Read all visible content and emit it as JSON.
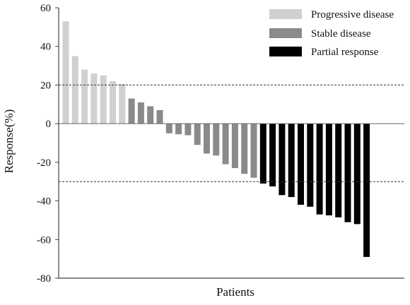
{
  "chart_data": {
    "type": "bar",
    "title": "",
    "xlabel": "Patients",
    "ylabel": "Response(%)",
    "ylim": [
      -80,
      60
    ],
    "yticks": [
      60,
      40,
      20,
      0,
      -20,
      -40,
      -60,
      -80
    ],
    "grid": false,
    "legend_position": "top-right",
    "reference_lines": [
      20,
      -30
    ],
    "series": [
      {
        "name": "Progressive  disease",
        "color": "#d0d0d0",
        "values": [
          53,
          35,
          28,
          26,
          25,
          22,
          20.5
        ]
      },
      {
        "name": "Stable disease",
        "color": "#8a8a8a",
        "values": [
          13,
          11,
          9,
          7,
          -5,
          -5.5,
          -6,
          -11,
          -15.5,
          -16.5,
          -21,
          -23,
          -26,
          -28
        ]
      },
      {
        "name": "Partial response",
        "color": "#000000",
        "values": [
          -31,
          -32.5,
          -37,
          -38,
          -42,
          -43,
          -47,
          -47.5,
          -48.5,
          -51,
          -52,
          -69
        ]
      }
    ]
  }
}
